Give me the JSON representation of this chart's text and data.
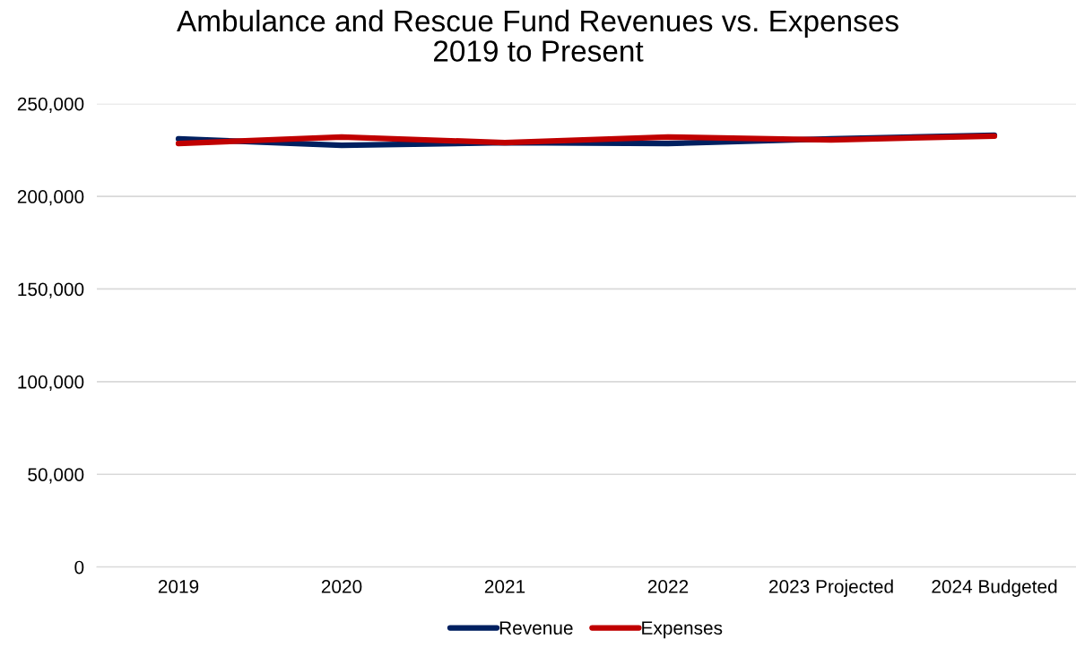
{
  "chart_data": {
    "type": "line",
    "title": "Ambulance and Rescue Fund Revenues vs. Expenses\n2019 to Present",
    "categories": [
      "2019",
      "2020",
      "2021",
      "2022",
      "2023 Projected",
      "2024 Budgeted"
    ],
    "series": [
      {
        "name": "Revenue",
        "color": "#002060",
        "values": [
          231000,
          227500,
          229000,
          228500,
          231000,
          233000
        ]
      },
      {
        "name": "Expenses",
        "color": "#c00000",
        "values": [
          228500,
          232000,
          229000,
          232000,
          230500,
          232500
        ]
      }
    ],
    "ylim": [
      0,
      250000
    ],
    "yticks": [
      {
        "value": 0,
        "label": "0"
      },
      {
        "value": 50000,
        "label": "50,000"
      },
      {
        "value": 100000,
        "label": "100,000"
      },
      {
        "value": 150000,
        "label": "150,000"
      },
      {
        "value": 200000,
        "label": "200,000"
      },
      {
        "value": 250000,
        "label": "250,000"
      }
    ],
    "grid": "y",
    "legend": "bottom",
    "marker": "none",
    "line_style": "solid"
  }
}
